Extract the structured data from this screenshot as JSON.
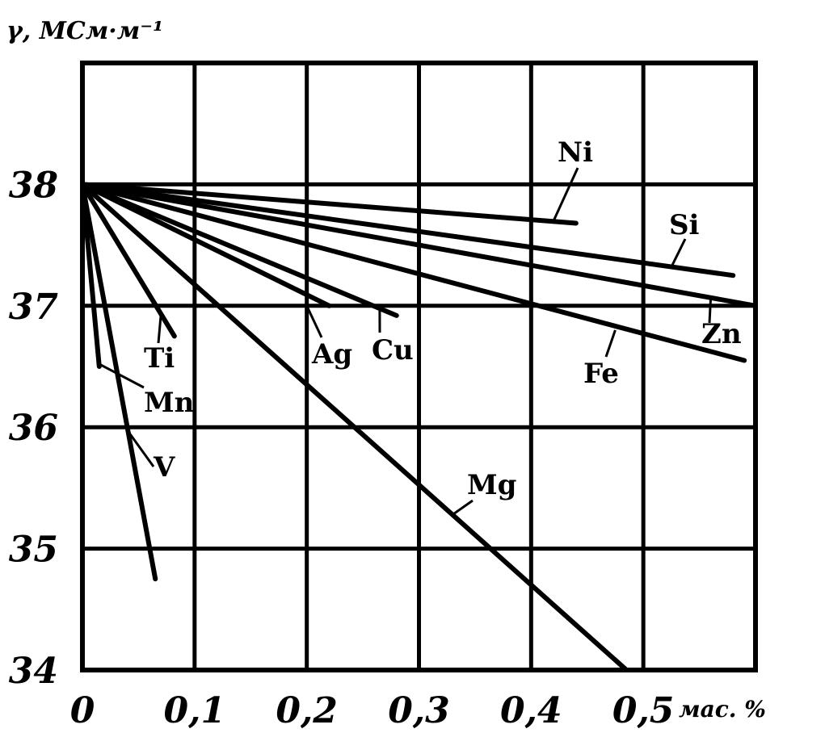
{
  "chart_data": {
    "type": "line",
    "ylabel": "γ, МСм·м⁻¹",
    "xlabel": "мас. %",
    "xlim": [
      0,
      0.6
    ],
    "ylim": [
      34,
      39
    ],
    "grid": true,
    "x_ticks": [
      {
        "value": 0,
        "label": "0"
      },
      {
        "value": 0.1,
        "label": "0,1"
      },
      {
        "value": 0.2,
        "label": "0,2"
      },
      {
        "value": 0.3,
        "label": "0,3"
      },
      {
        "value": 0.4,
        "label": "0,4"
      },
      {
        "value": 0.5,
        "label": "0,5"
      }
    ],
    "y_ticks": [
      {
        "value": 34,
        "label": "34"
      },
      {
        "value": 35,
        "label": "35"
      },
      {
        "value": 36,
        "label": "36"
      },
      {
        "value": 37,
        "label": "37"
      },
      {
        "value": 38,
        "label": "38"
      }
    ],
    "series": [
      {
        "name": "Ni",
        "x": [
          0,
          0.44
        ],
        "y": [
          38.0,
          37.68
        ]
      },
      {
        "name": "Si",
        "x": [
          0,
          0.58
        ],
        "y": [
          38.0,
          37.25
        ]
      },
      {
        "name": "Zn",
        "x": [
          0,
          0.6
        ],
        "y": [
          38.0,
          37.0
        ]
      },
      {
        "name": "Fe",
        "x": [
          0,
          0.59
        ],
        "y": [
          38.0,
          36.55
        ]
      },
      {
        "name": "Cu",
        "x": [
          0,
          0.28
        ],
        "y": [
          38.0,
          36.92
        ]
      },
      {
        "name": "Ag",
        "x": [
          0,
          0.22
        ],
        "y": [
          38.0,
          37.0
        ]
      },
      {
        "name": "Mg",
        "x": [
          0,
          0.485
        ],
        "y": [
          38.0,
          34.0
        ]
      },
      {
        "name": "Ti",
        "x": [
          0,
          0.082
        ],
        "y": [
          38.0,
          36.75
        ]
      },
      {
        "name": "Mn",
        "x": [
          0,
          0.015
        ],
        "y": [
          38.0,
          36.5
        ]
      },
      {
        "name": "V",
        "x": [
          0,
          0.065
        ],
        "y": [
          38.0,
          34.75
        ]
      }
    ]
  }
}
